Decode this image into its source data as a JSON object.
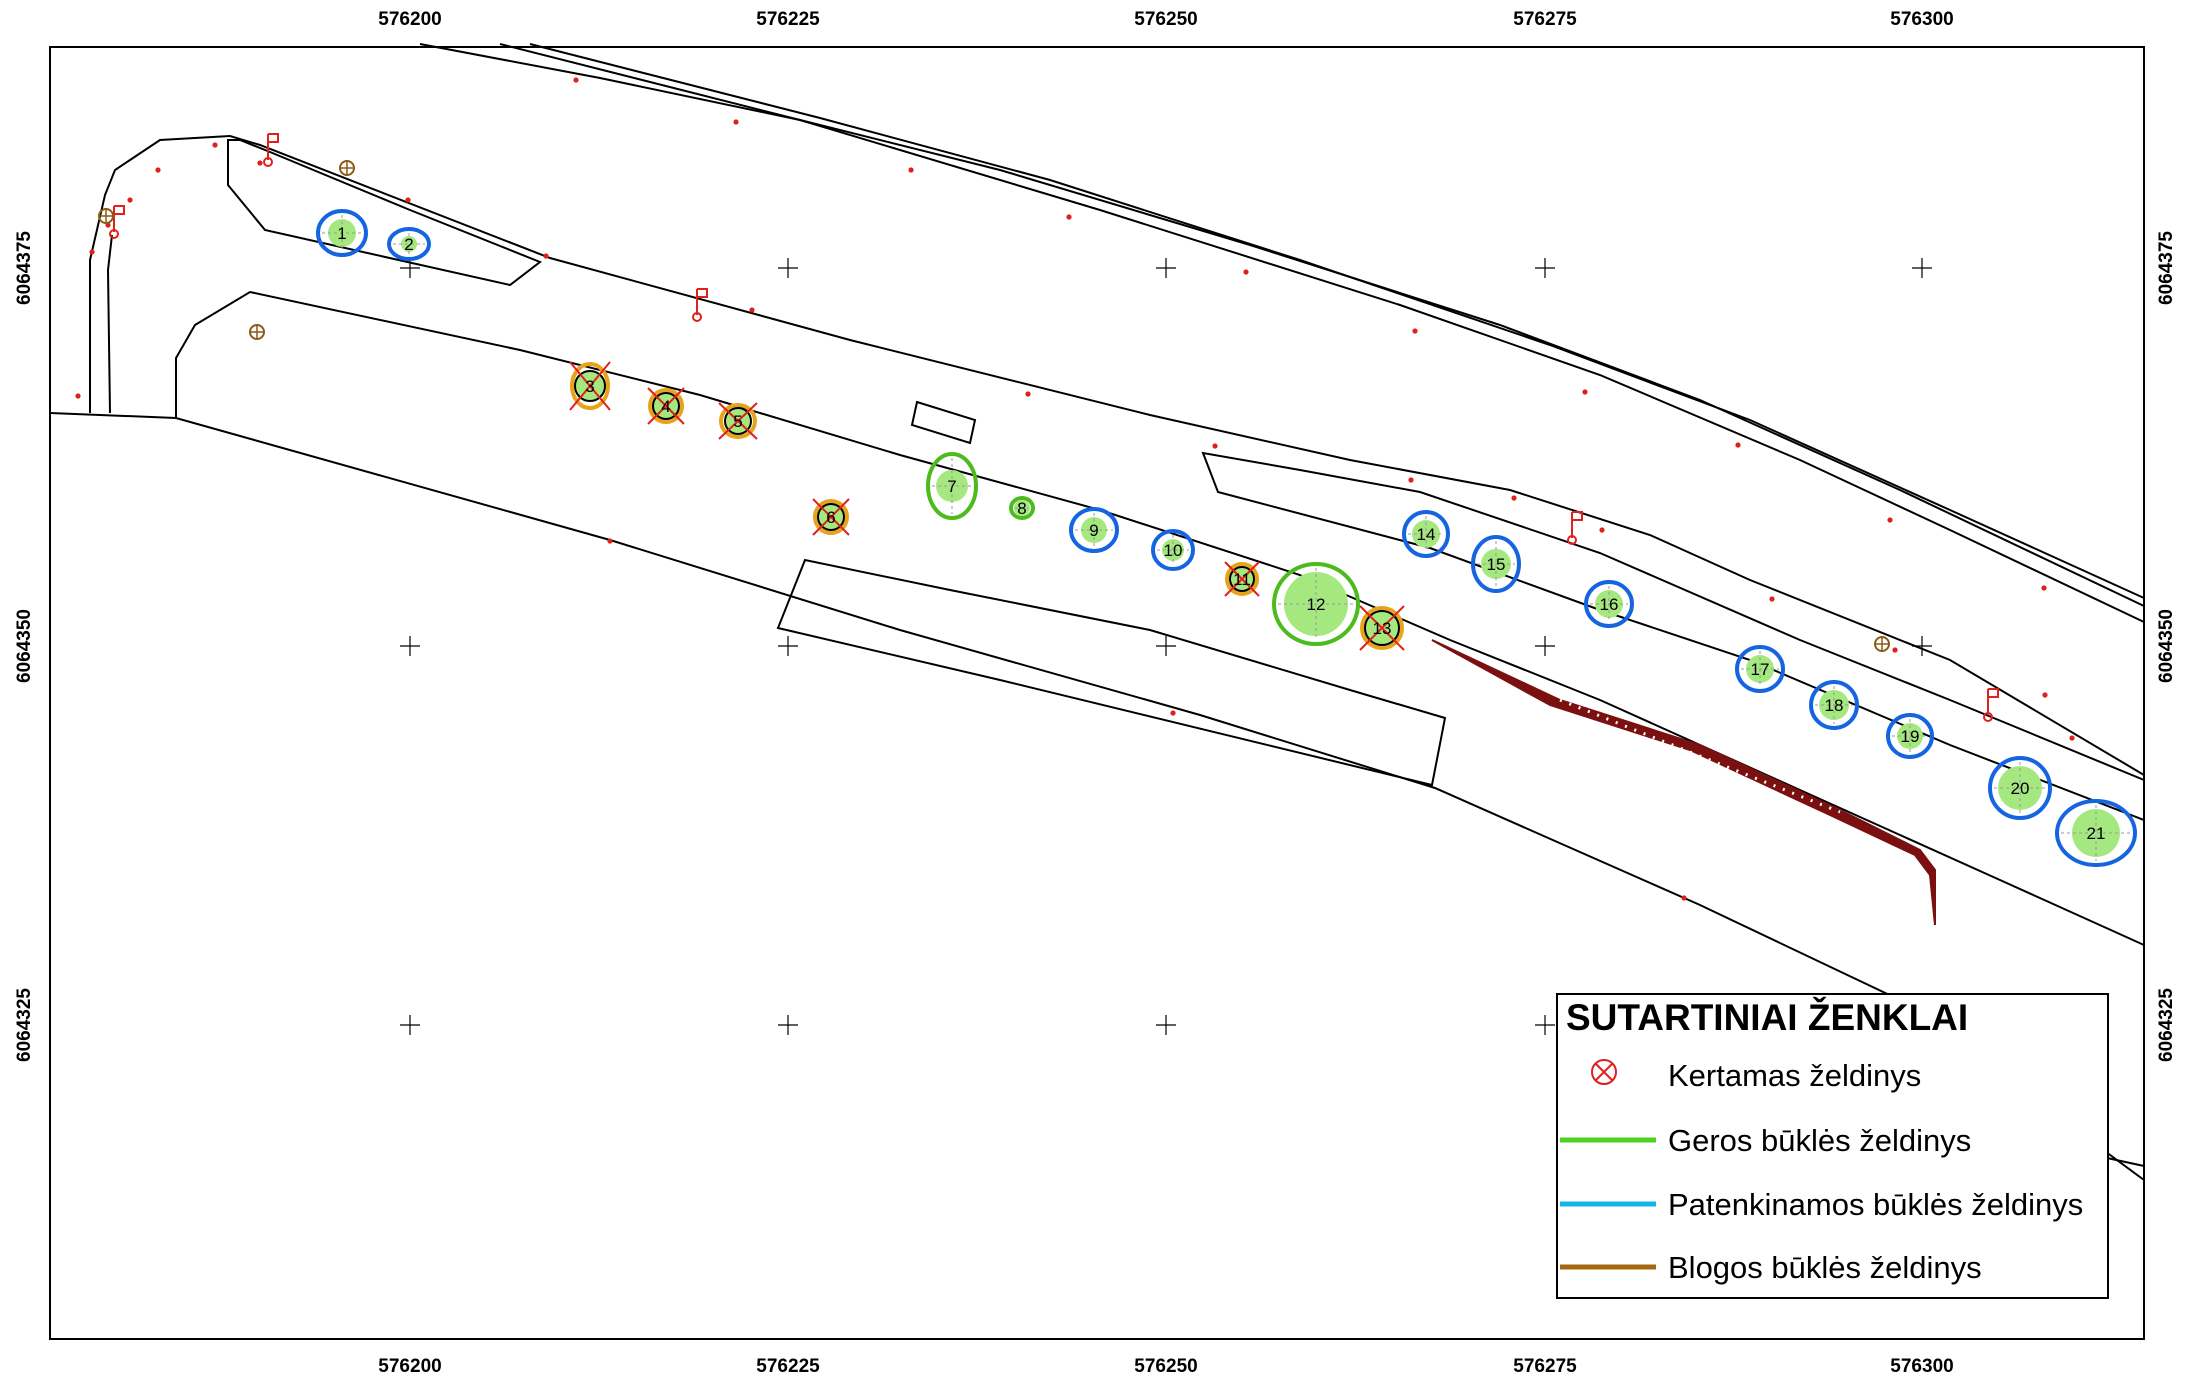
{
  "map": {
    "x_ticks": [
      "576200",
      "576225",
      "576250",
      "576275",
      "576300"
    ],
    "y_ticks": [
      "6064375",
      "6064350",
      "6064325"
    ]
  },
  "trees": [
    {
      "n": "1",
      "status": "patenkinamos"
    },
    {
      "n": "2",
      "status": "patenkinamos"
    },
    {
      "n": "3",
      "status": "blogos",
      "cut": true
    },
    {
      "n": "4",
      "status": "blogos",
      "cut": true
    },
    {
      "n": "5",
      "status": "blogos",
      "cut": true
    },
    {
      "n": "6",
      "status": "blogos",
      "cut": true
    },
    {
      "n": "7",
      "status": "geros"
    },
    {
      "n": "8",
      "status": "geros"
    },
    {
      "n": "9",
      "status": "patenkinamos"
    },
    {
      "n": "10",
      "status": "patenkinamos"
    },
    {
      "n": "11",
      "status": "blogos",
      "cut": true
    },
    {
      "n": "12",
      "status": "geros"
    },
    {
      "n": "13",
      "status": "blogos",
      "cut": true
    },
    {
      "n": "14",
      "status": "patenkinamos"
    },
    {
      "n": "15",
      "status": "patenkinamos"
    },
    {
      "n": "16",
      "status": "patenkinamos"
    },
    {
      "n": "17",
      "status": "patenkinamos"
    },
    {
      "n": "18",
      "status": "patenkinamos"
    },
    {
      "n": "19",
      "status": "patenkinamos"
    },
    {
      "n": "20",
      "status": "patenkinamos"
    },
    {
      "n": "21",
      "status": "patenkinamos"
    }
  ],
  "legend": {
    "title": "SUTARTINIAI ŽENKLAI",
    "items": [
      {
        "label": "Kertamas želdinys",
        "symbol": "cut-marker-icon",
        "color": "#e0201c"
      },
      {
        "label": "Geros būklės želdinys",
        "symbol": "line",
        "color": "#4cd21f"
      },
      {
        "label": "Patenkinamos būklės želdinys",
        "symbol": "line",
        "color": "#17b4e8"
      },
      {
        "label": "Blogos būklės želdinys",
        "symbol": "line",
        "color": "#a6680f"
      }
    ]
  },
  "colors": {
    "geros": "#4cbb1c",
    "patenkinamos": "#1565e0",
    "blogos": "#e8a21c",
    "fill": "#a6e880",
    "cut": "#e0201c",
    "slope": "#7a1010"
  }
}
